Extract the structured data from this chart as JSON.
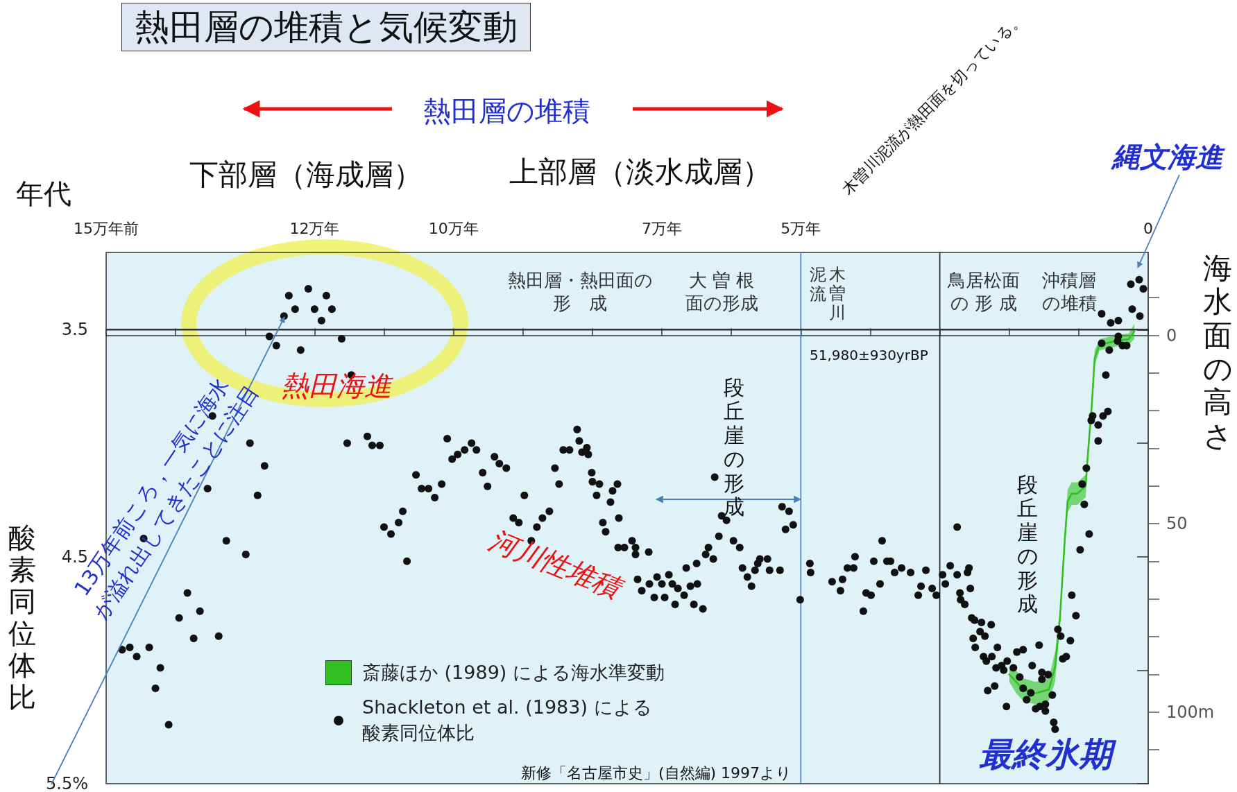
{
  "chart_data": {
    "type": "scatter",
    "title": "熱田層の堆積と気候変動",
    "xlabel": "年代",
    "ylabel": "酸素同位体比",
    "y2label": "海水面の高さ",
    "xlim": [
      15,
      0
    ],
    "xticks": [
      {
        "value": 15,
        "label": "15万年前"
      },
      {
        "value": 14,
        "label": null
      },
      {
        "value": 13,
        "label": null
      },
      {
        "value": 12,
        "label": "12万年"
      },
      {
        "value": 11,
        "label": null
      },
      {
        "value": 10,
        "label": "10万年"
      },
      {
        "value": 9,
        "label": null
      },
      {
        "value": 8,
        "label": null
      },
      {
        "value": 7,
        "label": "7万年"
      },
      {
        "value": 6,
        "label": null
      },
      {
        "value": 5,
        "label": "5万年"
      },
      {
        "value": 4,
        "label": null
      },
      {
        "value": 3,
        "label": null
      },
      {
        "value": 2,
        "label": null
      },
      {
        "value": 1,
        "label": null
      },
      0
    ],
    "ylim": [
      5.5,
      3.16
    ],
    "yticks": [
      3.5,
      {
        "value": 4,
        "label": null
      },
      4.5,
      {
        "value": 5,
        "label": null
      },
      {
        "value": 5.5,
        "label": "5.5%"
      }
    ],
    "y2lim": [
      119,
      -22
    ],
    "y2ticks": [
      {
        "value": -10,
        "label": null
      },
      0,
      {
        "value": 10,
        "label": null
      },
      {
        "value": 20,
        "label": null
      },
      {
        "value": 30,
        "label": null
      },
      {
        "value": 40,
        "label": null
      },
      50,
      {
        "value": 60,
        "label": null
      },
      {
        "value": 70,
        "label": null
      },
      {
        "value": 80,
        "label": null
      },
      {
        "value": 90,
        "label": null
      },
      {
        "value": 100,
        "label": "100m"
      },
      {
        "value": 110,
        "label": null
      }
    ],
    "legend": "bottom left",
    "series": [
      {
        "name": "斎藤ほか (1989) による海水準変動",
        "type": "line",
        "axis": "y2",
        "marker": "none",
        "color": "#2fbf1f",
        "x": [
          2.0,
          1.9,
          1.8,
          1.62,
          1.43,
          1.34,
          1.27,
          1.2,
          1.16,
          1.1,
          1.02,
          0.9,
          0.87,
          0.81,
          0.77,
          0.7,
          0.47,
          0.28,
          0.2
        ],
        "values": [
          90,
          92,
          94,
          95,
          94,
          88,
          75,
          54,
          44,
          42,
          42,
          40,
          32,
          18,
          6,
          2.5,
          1.5,
          1,
          -1
        ],
        "lower": [
          88,
          89,
          91,
          92,
          91,
          84,
          73,
          52,
          41,
          39,
          39,
          37,
          30,
          16,
          4,
          1,
          0,
          -0.5,
          -3
        ],
        "upper": [
          92,
          95,
          97,
          98,
          97,
          92,
          77,
          56,
          47,
          45,
          45,
          43,
          34,
          20,
          8,
          4,
          3,
          2.5,
          1
        ]
      },
      {
        "name": "Shackleton et al. (1983) による酸素同位体比",
        "type": "scatter",
        "marker": "circle",
        "color": "#111111",
        "x": [
          12.37,
          12.09,
          11.83,
          12.28,
          12.0,
          11.75,
          12.44,
          11.9,
          12.65,
          12.55,
          12.2,
          11.61,
          11.47,
          13.47,
          12.93,
          12.72,
          13.54,
          12.82,
          11.53,
          11.24,
          11.17,
          11.06,
          10.09,
          10.02,
          9.94,
          10.54,
          10.46,
          10.36,
          10.17,
          10.27,
          10.73,
          10.79,
          11.0,
          10.9,
          10.67,
          14.46,
          13.27,
          12.99,
          13.83,
          13.95,
          13.65,
          13.74,
          13.38,
          14.77,
          14.66,
          14.56,
          14.38,
          14.22,
          14.29,
          14.1,
          9.84,
          9.74,
          9.67,
          9.58,
          9.51,
          9.41,
          9.34,
          9.24,
          8.98,
          9.14,
          9.06,
          8.88,
          8.8,
          8.72,
          8.62,
          8.54,
          8.48,
          8.42,
          8.33,
          8.22,
          8.19,
          8.08,
          8.15,
          8.06,
          8.01,
          8.0,
          7.9,
          7.94,
          7.71,
          7.64,
          7.74,
          7.85,
          7.81,
          7.62,
          7.43,
          7.63,
          7.54,
          7.38,
          7.38,
          7.19,
          7.35,
          7.29,
          7.18,
          7.11,
          7.07,
          7.0,
          6.96,
          6.9,
          6.85,
          6.81,
          6.77,
          6.68,
          6.65,
          6.59,
          6.54,
          6.49,
          6.5,
          6.41,
          6.37,
          6.33,
          6.26,
          6.24,
          6.18,
          6.14,
          6.07,
          5.97,
          5.88,
          5.84,
          5.77,
          5.71,
          5.66,
          5.62,
          5.59,
          5.48,
          5.45,
          5.3,
          5.27,
          5.17,
          5.11,
          5.22,
          5.01,
          4.87,
          4.86,
          4.55,
          4.4,
          4.43,
          4.33,
          4.24,
          4.22,
          4.1,
          4.06,
          3.99,
          3.95,
          3.86,
          3.83,
          3.76,
          3.71,
          3.65,
          3.55,
          3.42,
          3.31,
          3.27,
          3.2,
          3.11,
          3.05,
          2.96,
          2.92,
          2.85,
          2.75,
          2.75,
          2.6,
          2.58,
          2.56,
          2.71,
          2.7,
          2.64,
          2.54,
          2.5,
          2.4,
          2.26,
          2.42,
          2.35,
          2.52,
          2.49,
          2.17,
          2.37,
          2.33,
          2.25,
          2.19,
          2.11,
          2.03,
          2.08,
          1.94,
          1.89,
          1.8,
          2.31,
          2.21,
          2.04,
          1.85,
          1.8,
          1.75,
          1.69,
          1.67,
          1.62,
          1.57,
          1.53,
          1.53,
          1.56,
          1.48,
          1.48,
          1.44,
          1.38,
          1.36,
          1.34,
          1.3,
          1.26,
          1.12,
          1.23,
          1.18,
          1.1,
          1.04,
          0.98,
          0.85,
          0.92,
          0.95,
          0.89,
          0.82,
          0.8,
          0.72,
          0.72,
          0.65,
          0.58,
          0.61,
          0.67,
          0.56,
          0.44,
          0.37,
          0.31,
          0.54,
          0.43,
          0.43,
          0.67,
          0.25,
          0.13,
          0.07,
          0.23,
          0.12
        ],
        "values": [
          3.35,
          3.32,
          3.35,
          3.41,
          3.41,
          3.41,
          3.44,
          3.46,
          3.53,
          3.57,
          3.59,
          3.54,
          3.7,
          3.88,
          4.0,
          4.1,
          4.2,
          4.23,
          4.0,
          3.97,
          4.01,
          4.01,
          3.98,
          4.07,
          4.05,
          4.14,
          4.2,
          4.2,
          4.18,
          4.24,
          4.3,
          4.35,
          4.37,
          4.4,
          4.52,
          4.42,
          4.43,
          4.49,
          4.66,
          4.77,
          4.74,
          4.86,
          4.85,
          4.91,
          4.9,
          4.94,
          4.9,
          4.99,
          5.08,
          5.24,
          4.03,
          4.0,
          4.03,
          4.13,
          4.19,
          4.06,
          4.09,
          4.11,
          4.23,
          4.33,
          4.35,
          4.43,
          4.37,
          4.33,
          4.3,
          4.11,
          4.18,
          4.03,
          4.03,
          3.94,
          3.99,
          4.02,
          4.04,
          4.05,
          4.13,
          4.17,
          4.18,
          4.23,
          4.21,
          4.18,
          4.26,
          4.35,
          4.39,
          4.33,
          4.43,
          4.46,
          4.46,
          4.46,
          4.49,
          4.48,
          4.6,
          4.65,
          4.62,
          4.68,
          4.59,
          4.62,
          4.68,
          4.58,
          4.62,
          4.71,
          4.64,
          4.67,
          4.55,
          4.63,
          4.71,
          4.62,
          4.53,
          4.73,
          4.49,
          4.46,
          4.51,
          4.15,
          4.41,
          4.32,
          4.34,
          4.43,
          4.46,
          4.55,
          4.59,
          4.63,
          4.56,
          4.53,
          4.51,
          4.51,
          4.56,
          4.56,
          4.28,
          4.3,
          4.36,
          4.38,
          4.69,
          4.53,
          4.57,
          4.61,
          4.6,
          4.65,
          4.55,
          4.55,
          4.5,
          4.74,
          4.66,
          4.67,
          4.52,
          4.62,
          4.43,
          4.52,
          4.52,
          4.57,
          4.55,
          4.57,
          4.67,
          4.63,
          4.56,
          4.64,
          4.67,
          4.58,
          4.62,
          4.54,
          4.58,
          4.37,
          4.57,
          4.55,
          4.64,
          4.66,
          4.69,
          4.71,
          4.77,
          4.78,
          4.79,
          4.8,
          4.83,
          4.85,
          4.86,
          4.9,
          4.9,
          4.94,
          4.96,
          4.94,
          4.99,
          4.98,
          4.96,
          5.0,
          4.99,
          4.92,
          4.91,
          5.09,
          5.07,
          5.16,
          5.03,
          5.08,
          5.13,
          5.1,
          4.98,
          5.17,
          4.89,
          5.04,
          5.01,
          5.16,
          5.15,
          5.18,
          5.02,
          5.11,
          5.23,
          5.26,
          4.82,
          4.85,
          4.87,
          4.95,
          4.94,
          4.67,
          4.76,
          4.47,
          4.4,
          4.27,
          4.18,
          4.11,
          3.9,
          3.88,
          3.92,
          3.99,
          3.88,
          3.86,
          3.7,
          3.56,
          3.59,
          3.55,
          3.57,
          3.57,
          3.47,
          3.46,
          3.53,
          3.43,
          3.3,
          3.28,
          3.32,
          3.41,
          3.44
        ]
      }
    ],
    "ref_lines": [
      {
        "axis": "x",
        "value": 5,
        "label": "51,980±930yrBP",
        "color": "#4a7ebb"
      },
      {
        "axis": "x",
        "value": 3,
        "color": "#222222"
      },
      {
        "axis": "y",
        "value": 3.5,
        "color": "#333333"
      }
    ],
    "annotations": [
      "熱田層の堆積",
      "下部層（海成層）",
      "上部層（淡水成層）",
      "木曽川泥流が熱田面を切っている。",
      "縄文海進",
      "熱田層・熱田面の",
      "形　成",
      "大 曽 根",
      "面の形成",
      "木曽川",
      "泥流",
      "鳥居松面",
      "の 形 成",
      "沖積層",
      "の堆積",
      "段丘崖の形成",
      "段丘崖の形成",
      "熱田海進",
      "河川性堆積",
      "13万年前ころ，一気に海水",
      "が溢れ出してきたことに注目",
      "最終氷期",
      "新修「名古屋市史」(自然編) 1997より"
    ]
  }
}
